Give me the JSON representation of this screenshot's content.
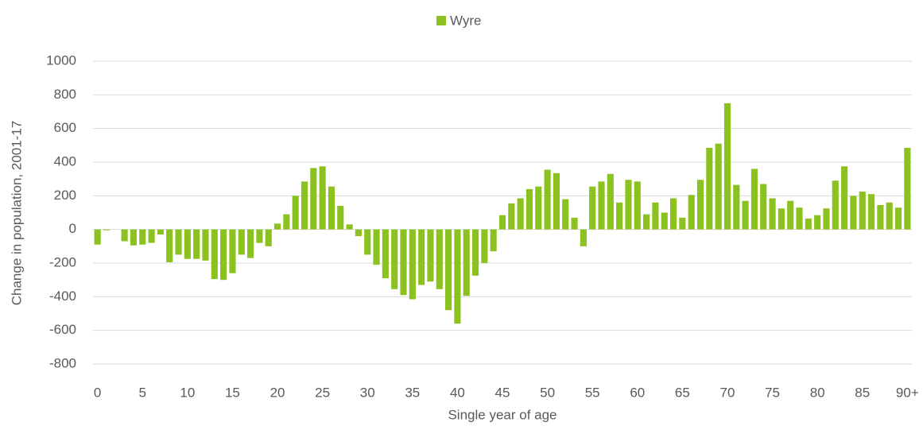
{
  "chart_data": {
    "type": "bar",
    "series": [
      {
        "name": "Wyre",
        "color": "#8cc220",
        "values": [
          -90,
          -5,
          0,
          -70,
          -95,
          -90,
          -80,
          -30,
          -195,
          -150,
          -175,
          -175,
          -185,
          -295,
          -300,
          -260,
          -150,
          -170,
          -80,
          -100,
          35,
          90,
          200,
          285,
          365,
          375,
          255,
          140,
          30,
          -40,
          -150,
          -210,
          -290,
          -355,
          -390,
          -415,
          -330,
          -310,
          -355,
          -480,
          -560,
          -395,
          -275,
          -200,
          -130,
          85,
          155,
          185,
          240,
          255,
          355,
          335,
          180,
          70,
          -100,
          255,
          285,
          330,
          160,
          295,
          285,
          90,
          160,
          100,
          185,
          70,
          205,
          295,
          485,
          510,
          750,
          265,
          170,
          360,
          270,
          185,
          125,
          170,
          130,
          65,
          85,
          125,
          290,
          375,
          200,
          225,
          210,
          145,
          160,
          130,
          485
        ]
      }
    ],
    "categories": [
      "0",
      null,
      null,
      null,
      null,
      "5",
      null,
      null,
      null,
      null,
      "10",
      null,
      null,
      null,
      null,
      "15",
      null,
      null,
      null,
      null,
      "20",
      null,
      null,
      null,
      null,
      "25",
      null,
      null,
      null,
      null,
      "30",
      null,
      null,
      null,
      null,
      "35",
      null,
      null,
      null,
      null,
      "40",
      null,
      null,
      null,
      null,
      "45",
      null,
      null,
      null,
      null,
      "50",
      null,
      null,
      null,
      null,
      "55",
      null,
      null,
      null,
      null,
      "60",
      null,
      null,
      null,
      null,
      "65",
      null,
      null,
      null,
      null,
      "70",
      null,
      null,
      null,
      null,
      "75",
      null,
      null,
      null,
      null,
      "80",
      null,
      null,
      null,
      null,
      "85",
      null,
      null,
      null,
      null,
      "90+"
    ],
    "ylim": [
      -800,
      1000
    ],
    "yticks": [
      -800,
      -600,
      -400,
      -200,
      0,
      200,
      400,
      600,
      800,
      1000
    ],
    "ylabel": "Change in population, 2001-17",
    "xlabel": "Single year of age",
    "grid": true,
    "legend": "top"
  }
}
